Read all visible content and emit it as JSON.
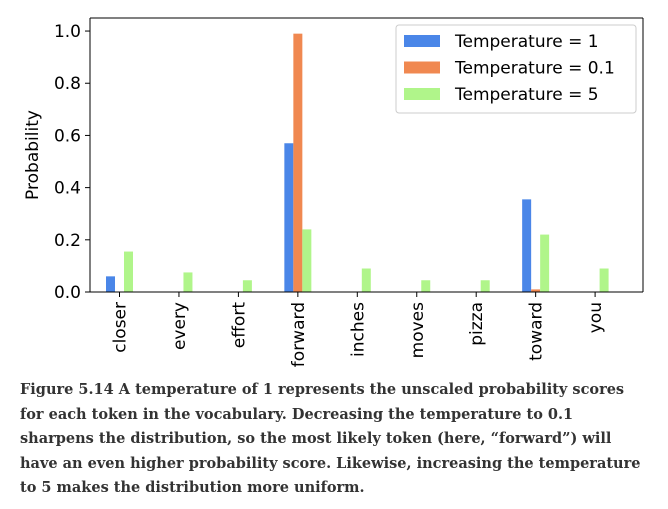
{
  "chart_data": {
    "type": "bar",
    "categories": [
      "closer",
      "every",
      "effort",
      "forward",
      "inches",
      "moves",
      "pizza",
      "toward",
      "you"
    ],
    "series": [
      {
        "name": "Temperature = 1",
        "color": "#4a86e8",
        "values": [
          0.06,
          0.0,
          0.0,
          0.57,
          0.0,
          0.0,
          0.0,
          0.355,
          0.0
        ]
      },
      {
        "name": "Temperature = 0.1",
        "color": "#f08850",
        "values": [
          0.0,
          0.0,
          0.0,
          0.99,
          0.0,
          0.0,
          0.0,
          0.01,
          0.0
        ]
      },
      {
        "name": "Temperature = 5",
        "color": "#b0f58a",
        "values": [
          0.155,
          0.075,
          0.045,
          0.24,
          0.09,
          0.045,
          0.045,
          0.22,
          0.09
        ]
      }
    ],
    "ylabel": "Probability",
    "xlabel": "",
    "ylim": [
      0.0,
      1.05
    ],
    "yticks": [
      "0.0",
      "0.2",
      "0.4",
      "0.6",
      "0.8",
      "1.0"
    ],
    "grid": false,
    "legend_position": "top-right"
  },
  "caption": {
    "label": "Figure 5.14",
    "text": " A temperature of 1 represents the unscaled probability scores for each token in the vocabulary. Decreasing the temperature to 0.1 sharpens the distribution, so the most likely token (here, “forward”) will have an even higher probability score. Likewise, increasing the temperature to 5 makes the distribution more uniform."
  }
}
